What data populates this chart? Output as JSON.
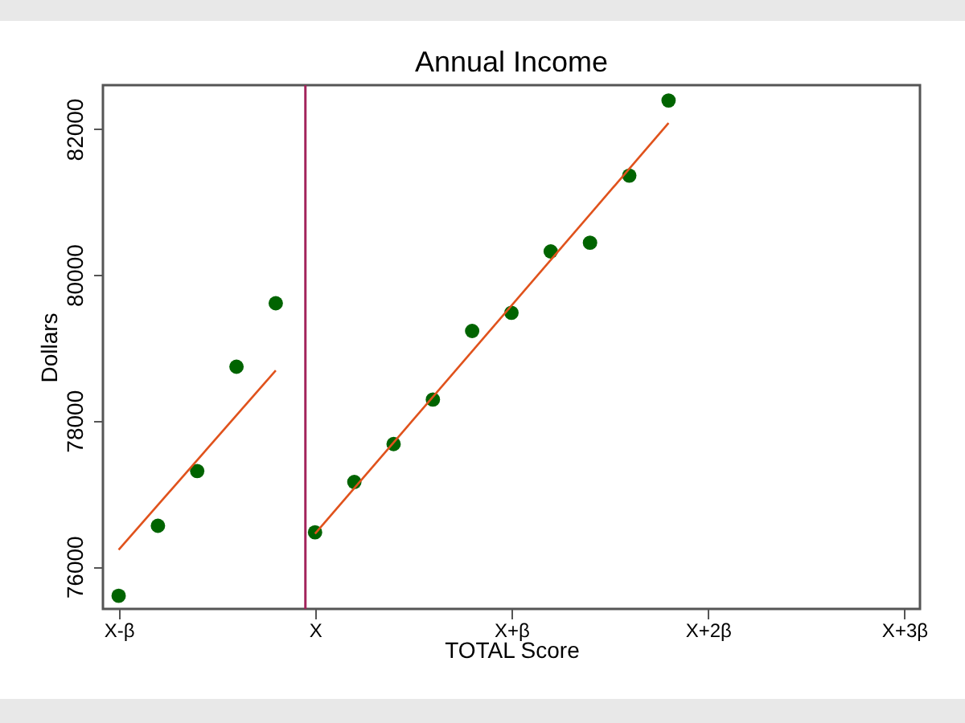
{
  "chart_data": {
    "type": "scatter",
    "title": "Annual Income",
    "xlabel": "TOTAL Score",
    "ylabel": "Dollars",
    "categories": [
      "X-β",
      null,
      null,
      null,
      null,
      "X",
      null,
      null,
      null,
      null,
      "X+β",
      null,
      null,
      null,
      null,
      "X+2β",
      null,
      null,
      null,
      null,
      "X+3β"
    ],
    "ylim": [
      75420,
      82600
    ],
    "yticks": [
      76000,
      78000,
      80000,
      82000
    ],
    "grid": false,
    "marker": "circle",
    "series": [
      {
        "color": "#006400",
        "values": [
          75600,
          76560,
          77310,
          78740,
          79610,
          76470,
          77160,
          77680,
          78290,
          79230,
          79480,
          80320,
          80440,
          81360,
          82390,
          null,
          null,
          null,
          null,
          null,
          null
        ]
      },
      {
        "type": "line",
        "color": "#e0521c",
        "line_style": "solid",
        "marker": "none",
        "values": [
          76230,
          null,
          null,
          null,
          78690,
          null,
          null,
          null,
          null,
          null,
          null,
          null,
          null,
          null,
          null,
          null,
          null,
          null,
          null,
          null,
          null
        ]
      },
      {
        "type": "line",
        "color": "#e0521c",
        "line_style": "solid",
        "marker": "none",
        "values": [
          null,
          null,
          null,
          null,
          null,
          76450,
          null,
          null,
          null,
          null,
          null,
          null,
          null,
          null,
          82080,
          null,
          null,
          null,
          null,
          null,
          null
        ]
      }
    ],
    "ref_lines": [
      {
        "axis": "x",
        "value": "X",
        "color": "#a3245c",
        "line_style": "solid"
      }
    ]
  }
}
